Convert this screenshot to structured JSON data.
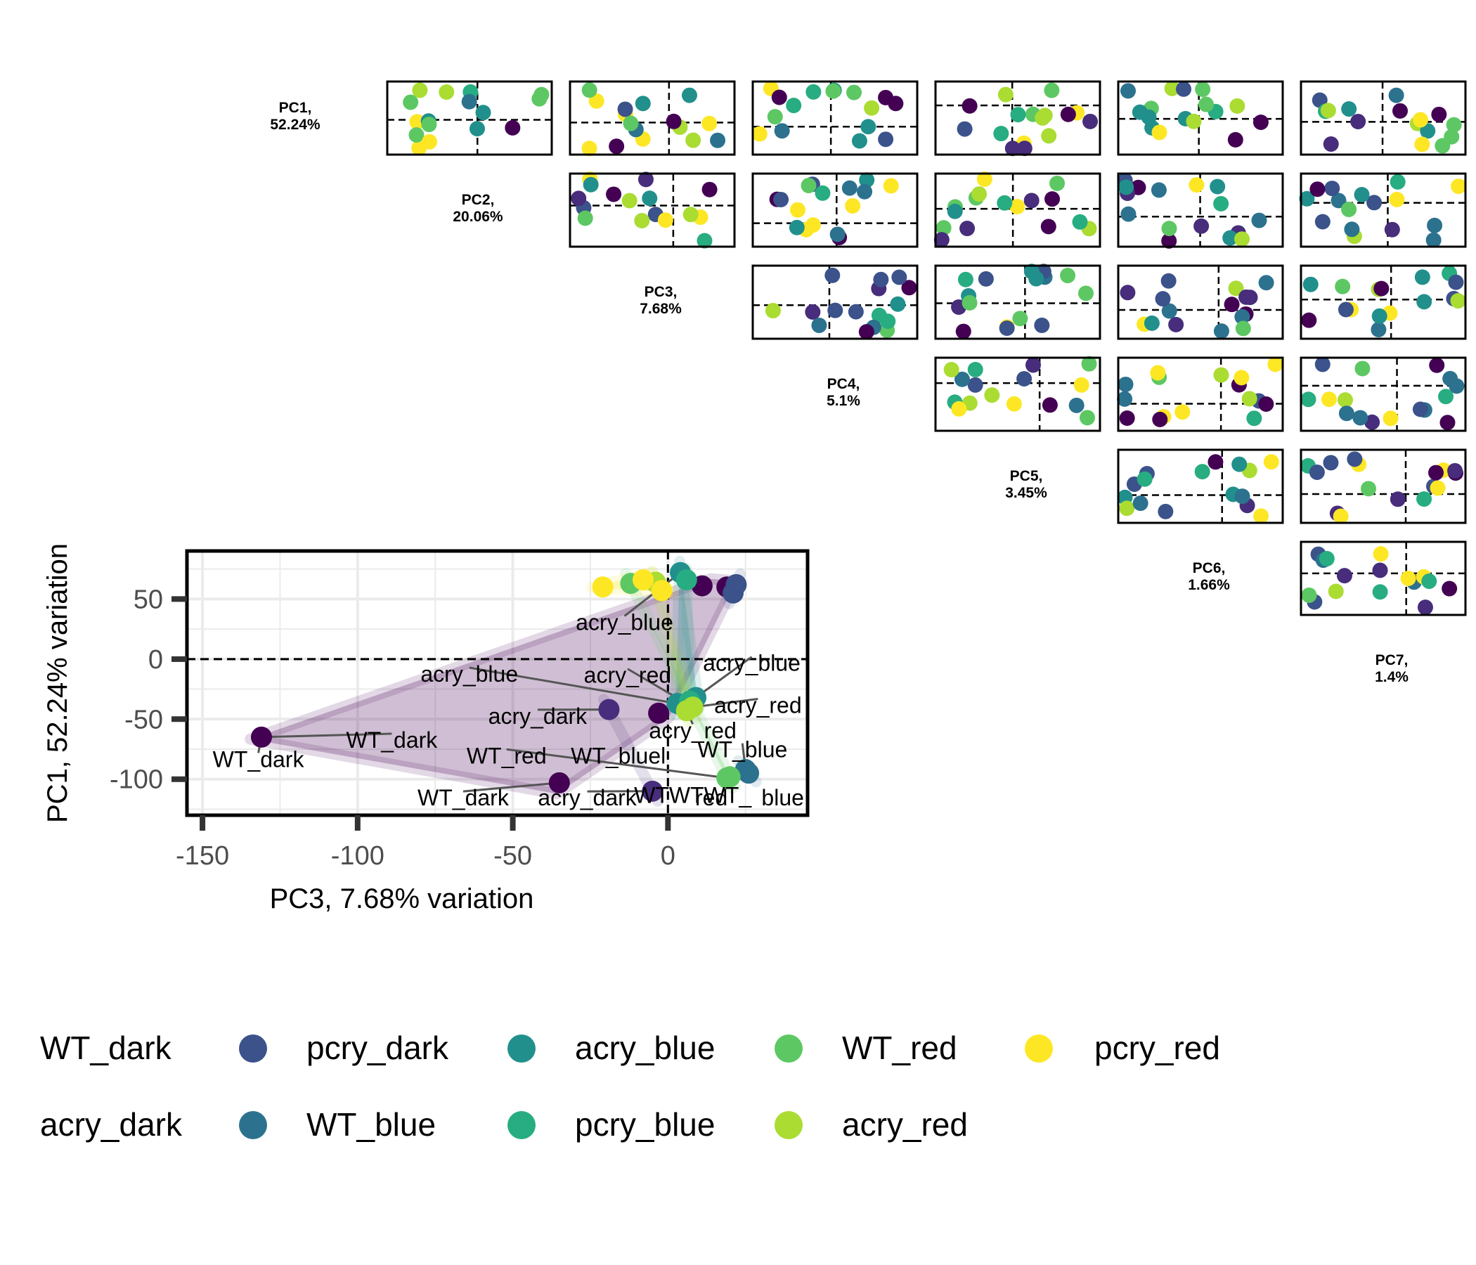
{
  "chart_data": {
    "type": "scatter",
    "pairs_panel": {
      "diagonal_labels": [
        {
          "pc": "PC1,",
          "pct": "52.24%"
        },
        {
          "pc": "PC2,",
          "pct": "20.06%"
        },
        {
          "pc": "PC3,",
          "pct": "7.68%"
        },
        {
          "pc": "PC4,",
          "pct": "5.1%"
        },
        {
          "pc": "PC5,",
          "pct": "3.45%"
        },
        {
          "pc": "PC6,",
          "pct": "1.66%"
        },
        {
          "pc": "PC7,",
          "pct": "1.4%"
        }
      ]
    },
    "main": {
      "title": "",
      "xlabel": "PC3, 7.68% variation",
      "ylabel": "PC1, 52.24% variation",
      "xlim": [
        -155,
        45
      ],
      "ylim": [
        -130,
        90
      ],
      "xticks": [
        -150,
        -100,
        -50,
        0
      ],
      "yticks": [
        50,
        0,
        -50,
        -100
      ],
      "reference_lines": {
        "x": 0,
        "y": 0
      },
      "grid": true,
      "points": [
        {
          "x": -131,
          "y": -65,
          "group": "WT_dark",
          "label": "WT_dark"
        },
        {
          "x": -35,
          "y": -103,
          "group": "WT_dark",
          "label": "WT_dark"
        },
        {
          "x": -3,
          "y": -45,
          "group": "WT_dark",
          "label": "WT_dark"
        },
        {
          "x": 11,
          "y": 61,
          "group": "WT_dark",
          "label": ""
        },
        {
          "x": 19,
          "y": 60,
          "group": "WT_dark",
          "label": ""
        },
        {
          "x": -19,
          "y": -42,
          "group": "acry_dark",
          "label": "acry_dark"
        },
        {
          "x": -5,
          "y": -110,
          "group": "acry_dark",
          "label": "acry_dark"
        },
        {
          "x": 22,
          "y": 62,
          "group": "pcry_dark",
          "label": ""
        },
        {
          "x": 21,
          "y": 55,
          "group": "pcry_dark",
          "label": ""
        },
        {
          "x": 26,
          "y": -95,
          "group": "WT_blue",
          "label": "WT_blue"
        },
        {
          "x": 25,
          "y": -92,
          "group": "WT_blue",
          "label": "WT_blue"
        },
        {
          "x": 9,
          "y": -32,
          "group": "acry_blue",
          "label": "acry_blue"
        },
        {
          "x": 3,
          "y": -37,
          "group": "acry_blue",
          "label": "acry_blue"
        },
        {
          "x": 4,
          "y": 72,
          "group": "acry_blue",
          "label": "acry_blue"
        },
        {
          "x": 6,
          "y": 66,
          "group": "pcry_blue",
          "label": ""
        },
        {
          "x": 7,
          "y": -35,
          "group": "pcry_blue",
          "label": ""
        },
        {
          "x": 19,
          "y": -99,
          "group": "WT_red",
          "label": "WT_red"
        },
        {
          "x": 20,
          "y": -98,
          "group": "WT_red",
          "label": "WT_red"
        },
        {
          "x": -12,
          "y": 63,
          "group": "WT_red",
          "label": ""
        },
        {
          "x": 8,
          "y": -40,
          "group": "acry_red",
          "label": "acry_red"
        },
        {
          "x": 6,
          "y": -43,
          "group": "acry_red",
          "label": "acry_red"
        },
        {
          "x": -4,
          "y": 64,
          "group": "acry_red",
          "label": ""
        },
        {
          "x": -21,
          "y": 60,
          "group": "pcry_red",
          "label": ""
        },
        {
          "x": -8,
          "y": 66,
          "group": "pcry_red",
          "label": ""
        },
        {
          "x": -2,
          "y": 57,
          "group": "pcry_red",
          "label": ""
        }
      ],
      "labels": [
        {
          "text": "WT_dark",
          "x": -132,
          "y": -84
        },
        {
          "text": "WT_dark",
          "x": -89,
          "y": -68
        },
        {
          "text": "WT_dark",
          "x": -66,
          "y": -116
        },
        {
          "text": "acry_blue",
          "x": -14,
          "y": 30
        },
        {
          "text": "acry_blue",
          "x": -64,
          "y": -13
        },
        {
          "text": "acry_blue",
          "x": 27,
          "y": -4
        },
        {
          "text": "acry_red",
          "x": -13,
          "y": -14
        },
        {
          "text": "acry_red",
          "x": 29,
          "y": -39
        },
        {
          "text": "acry_red",
          "x": 8,
          "y": -60
        },
        {
          "text": "acry_dark",
          "x": -42,
          "y": -48
        },
        {
          "text": "acry_dark",
          "x": -26,
          "y": -116
        },
        {
          "text": "WT_red",
          "x": -52,
          "y": -81
        },
        {
          "text": "WT_bluel",
          "x": -16,
          "y": -81
        },
        {
          "text": "WT_blue",
          "x": 24,
          "y": -76
        },
        {
          "text": "WTWTWT_",
          "x": 8,
          "y": -114
        },
        {
          "text": "red",
          "x": 14,
          "y": -116
        },
        {
          "text": "blue",
          "x": 37,
          "y": -116
        }
      ]
    },
    "legend": {
      "placement": "bottom",
      "entries": [
        {
          "name": "WT_dark",
          "color": "#440154"
        },
        {
          "name": "pcry_dark",
          "color": "#3B528B"
        },
        {
          "name": "acry_blue",
          "color": "#21908C"
        },
        {
          "name": "WT_red",
          "color": "#5DC863"
        },
        {
          "name": "pcry_red",
          "color": "#FDE725"
        },
        {
          "name": "acry_dark",
          "color": "#472D7B"
        },
        {
          "name": "WT_blue",
          "color": "#2C728E"
        },
        {
          "name": "pcry_blue",
          "color": "#27AD81"
        },
        {
          "name": "acry_red",
          "color": "#AADC32"
        }
      ]
    }
  }
}
